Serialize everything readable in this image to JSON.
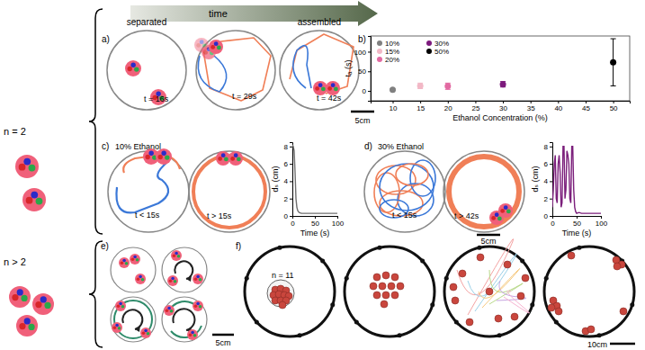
{
  "chart_data": [
    {
      "type": "scatter",
      "x_label": "Ethanol Concentration (%)",
      "y_label": "tₐ (s)",
      "xlim": [
        6,
        53
      ],
      "xticks": [
        10,
        15,
        20,
        25,
        30,
        35,
        40,
        45,
        50
      ],
      "ylim": [
        -25,
        140
      ],
      "yticks": [
        0,
        50,
        100
      ],
      "legend": "top-left",
      "marker": "circle",
      "series": [
        {
          "name": "10%",
          "color": "#808080",
          "x": [
            10
          ],
          "values": [
            3
          ],
          "errors": [
            2
          ]
        },
        {
          "name": "15%",
          "color": "#f2b8c6",
          "x": [
            15
          ],
          "values": [
            13
          ],
          "errors": [
            7
          ]
        },
        {
          "name": "20%",
          "color": "#e26aa2",
          "x": [
            20
          ],
          "values": [
            12
          ],
          "errors": [
            8
          ]
        },
        {
          "name": "30%",
          "color": "#7d1a7d",
          "x": [
            30
          ],
          "values": [
            17
          ],
          "errors": [
            7
          ]
        },
        {
          "name": "50%",
          "color": "#000000",
          "x": [
            50
          ],
          "values": [
            73
          ],
          "errors": [
            60
          ]
        }
      ]
    },
    {
      "type": "line",
      "x_label": "Time (s)",
      "y_label": "dₛ (cm)",
      "xlim": [
        0,
        100
      ],
      "xticks": [
        0,
        50,
        100
      ],
      "ylim": [
        0,
        8.5
      ],
      "yticks": [
        0,
        2,
        4,
        6,
        8
      ],
      "series": [
        {
          "color": "#707070",
          "x": [
            0,
            2,
            4,
            6,
            8,
            10,
            12,
            15,
            20,
            30,
            40,
            50,
            60,
            70,
            80,
            90,
            100
          ],
          "values": [
            8.2,
            8,
            7.5,
            5,
            2,
            1,
            0.6,
            0.4,
            0.3,
            0.3,
            0.3,
            0.3,
            0.3,
            0.3,
            0.3,
            0.3,
            0.3
          ]
        }
      ]
    },
    {
      "type": "line",
      "x_label": "Time (s)",
      "y_label": "dₛ (cm)",
      "xlim": [
        0,
        100
      ],
      "xticks": [
        0,
        50,
        100
      ],
      "ylim": [
        0,
        8.5
      ],
      "yticks": [
        0,
        2,
        4,
        6,
        8
      ],
      "series": [
        {
          "color": "#7b1f7b",
          "x": [
            0,
            2,
            4,
            6,
            8,
            10,
            12,
            14,
            16,
            18,
            20,
            22,
            24,
            26,
            28,
            30,
            32,
            34,
            36,
            38,
            40,
            42,
            44,
            46,
            48,
            50,
            55,
            60,
            70,
            80,
            90,
            100
          ],
          "values": [
            1,
            3,
            6,
            7,
            2,
            1.5,
            6,
            7,
            5,
            1,
            1.5,
            8,
            8,
            2,
            3,
            7.5,
            7,
            6,
            2,
            1.5,
            8,
            8,
            3,
            1,
            0.5,
            0.3,
            0.4,
            0.3,
            0.3,
            0.3,
            0.3,
            0.3
          ]
        }
      ]
    }
  ],
  "figure": {
    "time_label": "time",
    "groups": [
      "n = 2",
      "n > 2"
    ],
    "a": {
      "label": "a)",
      "stage_labels": [
        "separated",
        "assembled"
      ],
      "times": [
        "t = 16s",
        "t = 29s",
        "t = 42s"
      ],
      "scale": "5cm"
    },
    "b": {
      "label": "b)"
    },
    "c": {
      "label": "c)",
      "condition": "10% Ethanol",
      "times": [
        "t < 15s",
        "t > 15s"
      ]
    },
    "d": {
      "label": "d)",
      "condition": "30% Ethanol",
      "times": [
        "t < 15s",
        "t > 42s"
      ],
      "scale": "5cm"
    },
    "e": {
      "label": "e)",
      "scale": "5cm"
    },
    "f": {
      "label": "f)",
      "count": "n = 11",
      "scale": "10cm"
    }
  }
}
